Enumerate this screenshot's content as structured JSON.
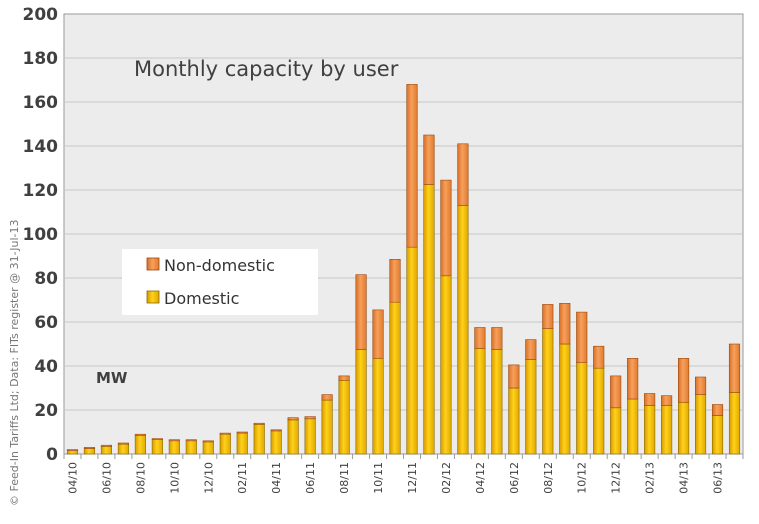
{
  "chart_data": {
    "type": "bar",
    "stacked": true,
    "title": "Monthly capacity by user",
    "unit_label": "MW",
    "credit": "© Feed-In Tariffs Ltd; Data: FITs register @ 31-Jul-13",
    "ylim": [
      0,
      200
    ],
    "yticks": [
      0,
      20,
      40,
      60,
      80,
      100,
      120,
      140,
      160,
      180,
      200
    ],
    "grid": true,
    "legend_position": "middle-left",
    "categories": [
      "04/10",
      "05/10",
      "06/10",
      "07/10",
      "08/10",
      "09/10",
      "10/10",
      "11/10",
      "12/10",
      "01/11",
      "02/11",
      "03/11",
      "04/11",
      "05/11",
      "06/11",
      "07/11",
      "08/11",
      "09/11",
      "10/11",
      "11/11",
      "12/11",
      "01/12",
      "02/12",
      "03/12",
      "04/12",
      "05/12",
      "06/12",
      "07/12",
      "08/12",
      "09/12",
      "10/12",
      "11/12",
      "12/12",
      "01/13",
      "02/13",
      "03/13",
      "04/13",
      "05/13",
      "06/13",
      "07/13"
    ],
    "tick_labels": [
      "04/10",
      "",
      "06/10",
      "",
      "08/10",
      "",
      "10/10",
      "",
      "12/10",
      "",
      "02/11",
      "",
      "04/11",
      "",
      "06/11",
      "",
      "08/11",
      "",
      "10/11",
      "",
      "12/11",
      "",
      "02/12",
      "",
      "04/12",
      "",
      "06/12",
      "",
      "08/12",
      "",
      "10/12",
      "",
      "12/12",
      "",
      "02/13",
      "",
      "04/13",
      "",
      "06/13",
      ""
    ],
    "series": [
      {
        "name": "Domestic",
        "color": "#f7c400",
        "values": [
          1.5,
          2.5,
          3.5,
          4.5,
          8.5,
          6.5,
          6,
          6,
          5.5,
          9,
          9.5,
          13.5,
          10.5,
          15.5,
          16,
          24.5,
          33.5,
          47.5,
          43.5,
          69,
          94,
          122.5,
          81,
          113,
          48,
          47.5,
          30,
          43,
          57,
          50,
          41.5,
          39,
          21,
          25,
          22,
          22,
          23.5,
          27,
          17.5,
          28
        ]
      },
      {
        "name": "Non-domestic",
        "color": "#f29447",
        "values": [
          0.5,
          0.5,
          0.5,
          0.5,
          0.5,
          0.5,
          0.5,
          0.5,
          0.5,
          0.5,
          0.5,
          0.5,
          0.5,
          1,
          1,
          2.5,
          2,
          34,
          22,
          19.5,
          74,
          22.5,
          43.5,
          28,
          9.5,
          10,
          10.5,
          9,
          11,
          18.5,
          23,
          10,
          14.5,
          18.5,
          5.5,
          4.5,
          20,
          8,
          5,
          22
        ]
      }
    ]
  }
}
